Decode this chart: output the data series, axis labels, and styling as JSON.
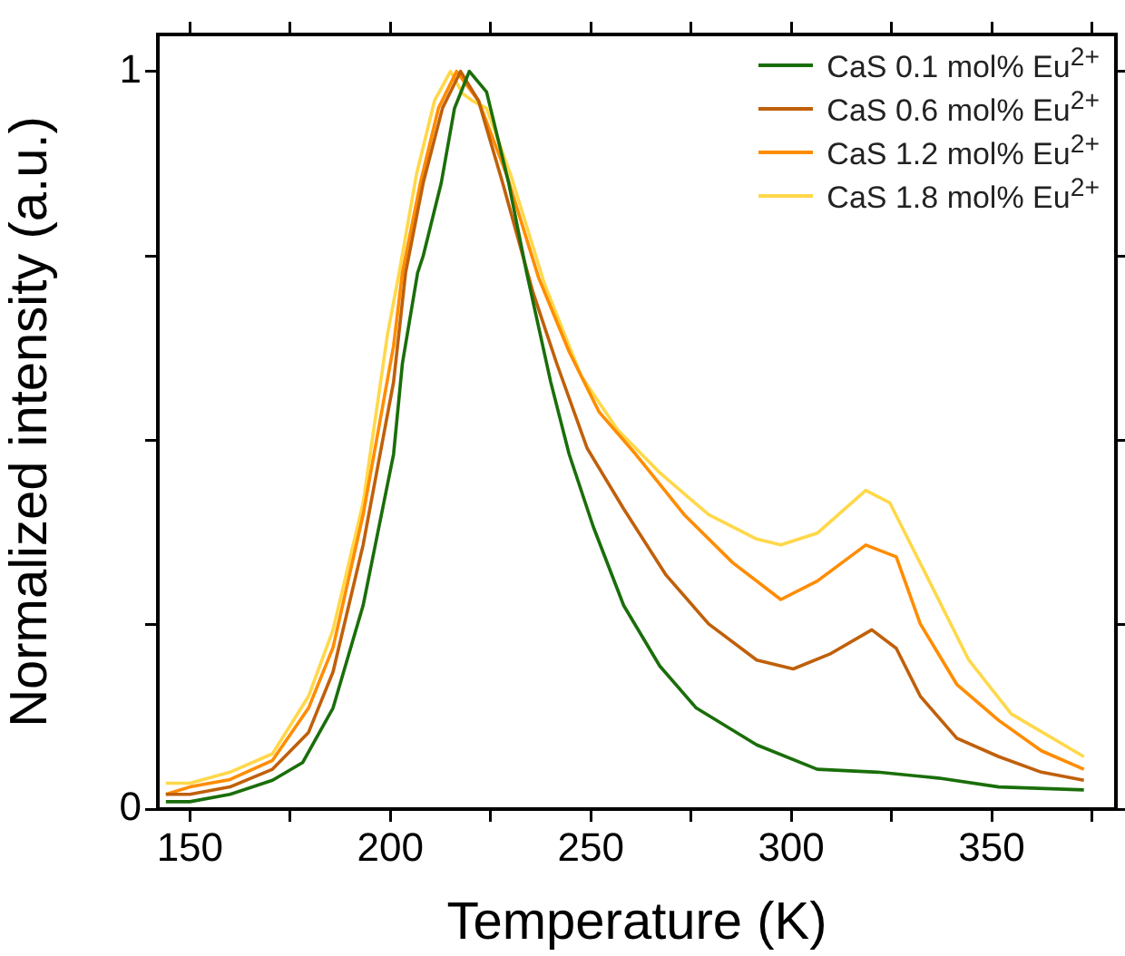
{
  "chart_data": {
    "type": "line",
    "xlabel": "Temperature (K)",
    "ylabel": "Normalized intensity (a.u.)",
    "xlim": [
      142,
      381
    ],
    "ylim": [
      0,
      1.05
    ],
    "xticks": [
      150,
      {
        "value": 175,
        "label": null
      },
      200,
      {
        "value": 225,
        "label": null
      },
      250,
      {
        "value": 275,
        "label": null
      },
      300,
      {
        "value": 325,
        "label": null
      },
      350,
      {
        "value": 375,
        "label": null
      }
    ],
    "yticks": [
      0,
      {
        "value": 0.25,
        "label": null
      },
      {
        "value": 0.5,
        "label": null
      },
      {
        "value": 0.75,
        "label": null
      },
      1
    ],
    "grid": false,
    "legend": "top right",
    "marker": "none",
    "line_style": "solid",
    "series": [
      {
        "name": "CaS 0.1 mol% Eu$^{2+}$",
        "color": "#1a6e0a",
        "x": [
          144,
          150,
          160,
          170.6,
          178.1,
          185.7,
          193.2,
          200.8,
          203,
          206.8,
          208.2,
          212.7,
          216,
          219.7,
          224,
          229.5,
          234,
          240,
          244.6,
          250.6,
          258.2,
          267.2,
          276.3,
          291.4,
          306.5,
          321.6,
          336.7,
          351.8,
          373
        ],
        "values": [
          0.01,
          0.01,
          0.02,
          0.039,
          0.063,
          0.137,
          0.276,
          0.481,
          0.604,
          0.727,
          0.75,
          0.849,
          0.95,
          1.0,
          0.972,
          0.849,
          0.727,
          0.579,
          0.481,
          0.383,
          0.276,
          0.194,
          0.137,
          0.087,
          0.054,
          0.05,
          0.042,
          0.03,
          0.026
        ]
      },
      {
        "name": "CaS 0.6 mol% Eu$^{2+}$",
        "color": "#c0600a",
        "x": [
          144,
          150,
          160,
          170.6,
          179.6,
          185.7,
          193.2,
          200.8,
          203.8,
          208.2,
          213,
          217.5,
          222,
          228,
          235.6,
          241.5,
          249.1,
          258.2,
          268.8,
          279.4,
          291.4,
          300.5,
          309.6,
          320.1,
          326.2,
          332.2,
          341.3,
          351.8,
          362.4,
          373
        ],
        "values": [
          0.02,
          0.02,
          0.03,
          0.054,
          0.104,
          0.186,
          0.358,
          0.579,
          0.727,
          0.849,
          0.95,
          1.0,
          0.96,
          0.849,
          0.7,
          0.604,
          0.489,
          0.407,
          0.317,
          0.251,
          0.202,
          0.19,
          0.21,
          0.243,
          0.218,
          0.153,
          0.096,
          0.071,
          0.05,
          0.039
        ]
      },
      {
        "name": "CaS 1.2 mol% Eu$^{2+}$",
        "color": "#ff8c00",
        "x": [
          144,
          150,
          160,
          170.6,
          179.6,
          185.7,
          193.2,
          200.8,
          203,
          207.5,
          212,
          216.5,
          222,
          229,
          237,
          244.6,
          252.1,
          261.2,
          273.3,
          285.4,
          297.4,
          306.5,
          318.6,
          326.2,
          332.2,
          341.3,
          351.8,
          362.4,
          373
        ],
        "values": [
          0.02,
          0.03,
          0.04,
          0.066,
          0.137,
          0.219,
          0.399,
          0.628,
          0.727,
          0.849,
          0.95,
          1.0,
          0.96,
          0.86,
          0.72,
          0.62,
          0.538,
          0.481,
          0.399,
          0.334,
          0.284,
          0.309,
          0.358,
          0.342,
          0.251,
          0.169,
          0.12,
          0.079,
          0.054
        ]
      },
      {
        "name": "CaS 1.8 mol% Eu$^{2+}$",
        "color": "#ffd84a",
        "x": [
          144,
          150,
          160,
          170.6,
          179.6,
          185.7,
          193.2,
          199.3,
          202.2,
          206.5,
          211,
          215,
          218,
          220.5,
          224,
          230,
          238.5,
          247.6,
          256.7,
          267.2,
          279.4,
          291.4,
          297.4,
          306.5,
          318.6,
          324.6,
          333.7,
          344.3,
          354.9,
          373
        ],
        "values": [
          0.035,
          0.035,
          0.05,
          0.075,
          0.153,
          0.243,
          0.415,
          0.644,
          0.727,
          0.86,
          0.96,
          1.0,
          0.97,
          0.96,
          0.95,
          0.86,
          0.711,
          0.587,
          0.514,
          0.456,
          0.399,
          0.366,
          0.358,
          0.374,
          0.432,
          0.415,
          0.317,
          0.202,
          0.129,
          0.071
        ]
      }
    ]
  }
}
